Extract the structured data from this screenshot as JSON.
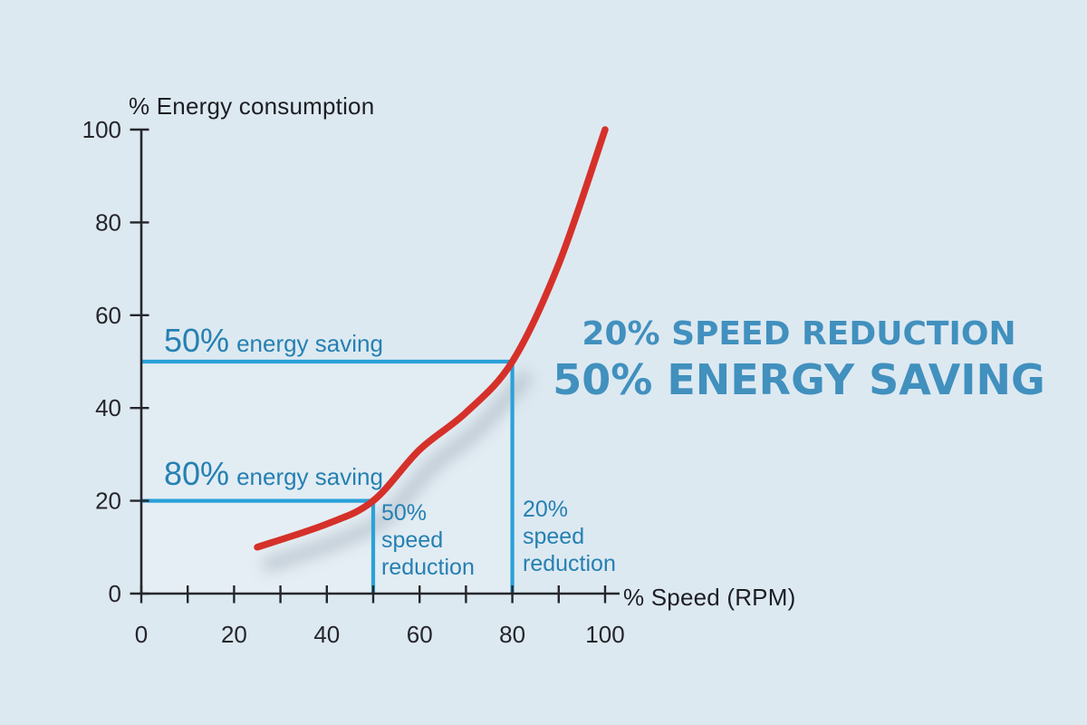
{
  "colors": {
    "background": "#dde9f1",
    "curve_red": "#d5312a",
    "guide_blue": "#2aa1d8",
    "label_blue": "#2580b2",
    "headline_blue": "#4190be",
    "axis_dark": "#25262b",
    "shadow_gray": "#8894a2"
  },
  "headline": {
    "line1": "20% SPEED REDUCTION",
    "line2": "50% ENERGY SAVING"
  },
  "labels": {
    "energy50": {
      "pct": "50%",
      "rest": "energy saving"
    },
    "energy80": {
      "pct": "80%",
      "rest": "energy saving"
    },
    "speed50": {
      "text": "50%\nspeed\nreduction"
    },
    "speed20": {
      "text": "20%\nspeed\nreduction"
    }
  },
  "chart_data": {
    "type": "line",
    "title": "",
    "xlabel": "% Speed (RPM)",
    "ylabel": "% Energy consumption",
    "xlim": [
      0,
      100
    ],
    "ylim": [
      0,
      100
    ],
    "grid": false,
    "x_major_ticks": [
      0,
      20,
      40,
      60,
      80,
      100
    ],
    "x_minor_tick_step": 10,
    "y_major_ticks": [
      0,
      20,
      40,
      60,
      80,
      100
    ],
    "series": [
      {
        "name": "energy-consumption-curve",
        "color": "#d5312a",
        "points": [
          [
            25,
            10
          ],
          [
            40,
            15
          ],
          [
            50,
            20
          ],
          [
            60,
            31
          ],
          [
            70,
            39
          ],
          [
            80,
            50
          ],
          [
            90,
            71
          ],
          [
            100,
            100
          ]
        ]
      }
    ],
    "guide_lines": [
      {
        "name": "guide-50-energy-saving",
        "from": [
          0,
          50
        ],
        "to": [
          80,
          50
        ]
      },
      {
        "name": "guide-80-energy-saving",
        "from": [
          0,
          20
        ],
        "to": [
          50,
          20
        ]
      },
      {
        "name": "guide-50-speed-reduction",
        "from": [
          50,
          0
        ],
        "to": [
          50,
          20
        ]
      },
      {
        "name": "guide-20-speed-reduction",
        "from": [
          80,
          0
        ],
        "to": [
          80,
          50
        ]
      }
    ],
    "key_points": [
      {
        "speed_reduction": "20%",
        "energy_saving": "50%",
        "at_speed": 80,
        "at_energy": 50
      },
      {
        "speed_reduction": "50%",
        "energy_saving": "80%",
        "at_speed": 50,
        "at_energy": 20
      }
    ]
  }
}
